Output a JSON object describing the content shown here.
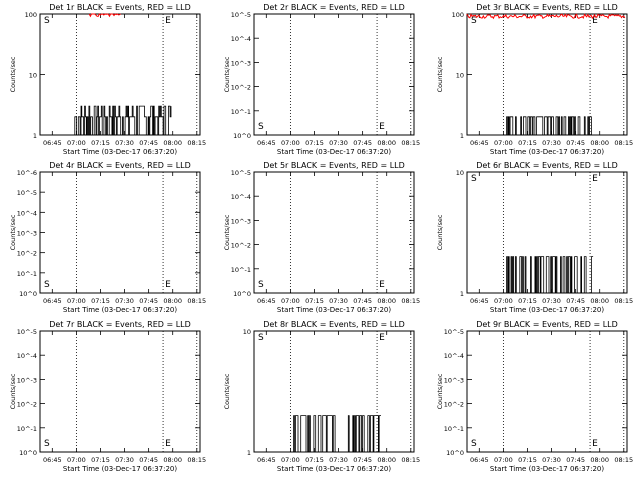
{
  "chart_data": [
    {
      "type": "line",
      "title": "Det 1r BLACK = Events, RED = LLD",
      "ylabel": "Counts/sec",
      "xlabel": "Start Time (03-Dec-17 06:37:20)",
      "yscale": "log",
      "ylim": [
        1,
        100
      ],
      "y_ticks": [
        "1",
        "10",
        "100"
      ],
      "x_ticks": [
        "06:45",
        "07:00",
        "07:15",
        "07:30",
        "07:45",
        "08:00",
        "08:15"
      ],
      "markers": [
        "S",
        "E"
      ],
      "black_trace": {
        "x_range": [
          "06:59",
          "07:59"
        ],
        "levels": [
          1,
          2,
          3
        ]
      },
      "red_trace": {
        "x_range": [
          "07:08",
          "07:28"
        ],
        "level": 100
      }
    },
    {
      "type": "line",
      "title": "Det 2r BLACK = Events, RED = LLD",
      "ylabel": "Counts/sec",
      "xlabel": "Start Time (03-Dec-17 06:37:20)",
      "yscale": "log",
      "ylim": [
        1,
        1e-05
      ],
      "y_ticks": [
        "10^0",
        "10^-1",
        "10^-2",
        "10^-3",
        "10^-4",
        "10^-5"
      ],
      "x_ticks": [
        "06:45",
        "07:00",
        "07:15",
        "07:30",
        "07:45",
        "08:00",
        "08:15"
      ],
      "markers": [
        "S",
        "E"
      ]
    },
    {
      "type": "line",
      "title": "Det 3r BLACK = Events, RED = LLD",
      "ylabel": "Counts/sec",
      "xlabel": "Start Time (03-Dec-17 06:37:20)",
      "yscale": "log",
      "ylim": [
        1,
        100
      ],
      "y_ticks": [
        "1",
        "10",
        "100"
      ],
      "x_ticks": [
        "06:45",
        "07:00",
        "07:15",
        "07:30",
        "07:45",
        "08:00",
        "08:15"
      ],
      "markers": [
        "S",
        "E"
      ],
      "black_trace": {
        "x_range": [
          "07:02",
          "07:57"
        ],
        "levels": [
          1,
          2
        ]
      },
      "red_trace": {
        "x_range": [
          "06:37",
          "08:16"
        ],
        "level": 95
      }
    },
    {
      "type": "line",
      "title": "Det 4r BLACK = Events, RED = LLD",
      "ylabel": "Counts/sec",
      "xlabel": "Start Time (03-Dec-17 06:37:20)",
      "yscale": "log",
      "ylim": [
        1,
        1e-06
      ],
      "y_ticks": [
        "10^0",
        "10^-1",
        "10^-2",
        "10^-3",
        "10^-4",
        "10^-5",
        "10^-6"
      ],
      "x_ticks": [
        "06:45",
        "07:00",
        "07:15",
        "07:30",
        "07:45",
        "08:00",
        "08:15"
      ],
      "markers": [
        "S",
        "E"
      ]
    },
    {
      "type": "line",
      "title": "Det 5r BLACK = Events, RED = LLD",
      "ylabel": "Counts/sec",
      "xlabel": "Start Time (03-Dec-17 06:37:20)",
      "yscale": "log",
      "ylim": [
        1,
        1e-05
      ],
      "y_ticks": [
        "10^0",
        "10^-1",
        "10^-2",
        "10^-3",
        "10^-4",
        "10^-5"
      ],
      "x_ticks": [
        "06:45",
        "07:00",
        "07:15",
        "07:30",
        "07:45",
        "08:00",
        "08:15"
      ],
      "markers": [
        "S",
        "E"
      ]
    },
    {
      "type": "line",
      "title": "Det 6r BLACK = Events, RED = LLD",
      "ylabel": "Counts/sec",
      "xlabel": "Start Time (03-Dec-17 06:37:20)",
      "yscale": "log",
      "ylim": [
        1,
        10
      ],
      "y_ticks": [
        "1",
        "10"
      ],
      "x_ticks": [
        "06:45",
        "07:00",
        "07:15",
        "07:30",
        "07:45",
        "08:00",
        "08:15"
      ],
      "markers": [
        "S",
        "E"
      ],
      "black_trace": {
        "x_range": [
          "07:02",
          "07:56"
        ],
        "levels": [
          1,
          2
        ]
      }
    },
    {
      "type": "line",
      "title": "Det 7r BLACK = Events, RED = LLD",
      "ylabel": "Counts/sec",
      "xlabel": "Start Time (03-Dec-17 06:37:20)",
      "yscale": "log",
      "ylim": [
        1,
        1e-05
      ],
      "y_ticks": [
        "10^0",
        "10^-1",
        "10^-2",
        "10^-3",
        "10^-4",
        "10^-5"
      ],
      "x_ticks": [
        "06:45",
        "07:00",
        "07:15",
        "07:30",
        "07:45",
        "08:00",
        "08:15"
      ],
      "markers": [
        "S",
        "E"
      ]
    },
    {
      "type": "line",
      "title": "Det 8r BLACK = Events, RED = LLD",
      "ylabel": "Counts/sec",
      "xlabel": "Start Time (03-Dec-17 06:37:20)",
      "yscale": "log",
      "ylim": [
        1,
        10
      ],
      "y_ticks": [
        "1",
        "10"
      ],
      "x_ticks": [
        "06:45",
        "07:00",
        "07:15",
        "07:30",
        "07:45",
        "08:00",
        "08:15"
      ],
      "markers": [
        "S",
        "E"
      ],
      "black_trace": {
        "x_range": [
          "07:02",
          "07:57"
        ],
        "levels": [
          1,
          2
        ]
      }
    },
    {
      "type": "line",
      "title": "Det 9r BLACK = Events, RED = LLD",
      "ylabel": "Counts/sec",
      "xlabel": "Start Time (03-Dec-17 06:37:20)",
      "yscale": "log",
      "ylim": [
        1,
        1e-05
      ],
      "y_ticks": [
        "10^0",
        "10^-1",
        "10^-2",
        "10^-3",
        "10^-4",
        "10^-5"
      ],
      "x_ticks": [
        "06:45",
        "07:00",
        "07:15",
        "07:30",
        "07:45",
        "08:00",
        "08:15"
      ],
      "markers": [
        "S",
        "E"
      ]
    }
  ]
}
